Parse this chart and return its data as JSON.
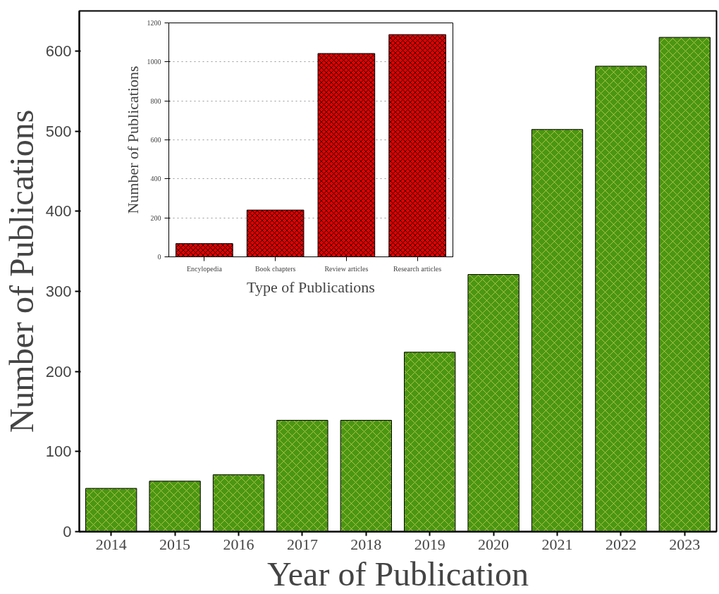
{
  "chart_data": [
    {
      "type": "bar",
      "xlabel": "Year of Publication",
      "ylabel": "Number of Publications",
      "categories": [
        "2014",
        "2015",
        "2016",
        "2017",
        "2018",
        "2019",
        "2020",
        "2021",
        "2022",
        "2023"
      ],
      "values": [
        54,
        63,
        71,
        139,
        139,
        224,
        321,
        502,
        581,
        617
      ],
      "color": "#4a9612",
      "ylim": [
        0,
        650
      ],
      "yticks": [
        0,
        100,
        200,
        300,
        400,
        500,
        600
      ],
      "grid": false
    },
    {
      "type": "bar",
      "xlabel": "Type of Publications",
      "ylabel": "Number of Publications",
      "categories": [
        "Encylopedia",
        "Book chapters",
        "Review articles",
        "Research articles"
      ],
      "values": [
        68,
        240,
        1043,
        1140
      ],
      "color": "#e00000",
      "ylim": [
        0,
        1200
      ],
      "yticks": [
        0,
        200,
        400,
        600,
        800,
        1000,
        1200
      ],
      "grid": "y"
    }
  ]
}
